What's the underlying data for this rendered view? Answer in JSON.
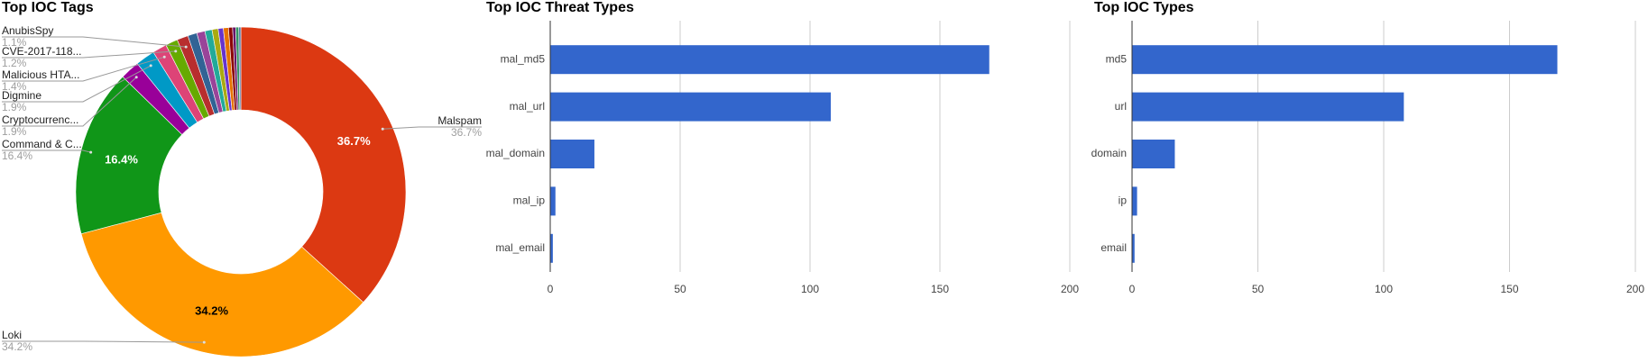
{
  "chart_data": [
    {
      "type": "pie",
      "title": "Top IOC Tags",
      "donut": true,
      "categories": [
        "Malspam",
        "Loki",
        "Command & C...",
        "Cryptocurrenc...",
        "Digmine",
        "Malicious HTA...",
        "CVE-2017-118...",
        "AnubisSpy",
        null,
        null,
        null,
        null,
        null,
        null,
        null,
        null,
        null,
        null
      ],
      "values": [
        36.7,
        34.2,
        16.4,
        1.9,
        1.9,
        1.4,
        1.2,
        1.1,
        0.9,
        0.8,
        0.7,
        0.6,
        0.5,
        0.5,
        0.4,
        0.3,
        0.3,
        0.2
      ],
      "value_labels": [
        "36.7%",
        "34.2%",
        "16.4%",
        "1.9%",
        "1.9%",
        "1.4%",
        "1.2%",
        "1.1%",
        null,
        null,
        null,
        null,
        null,
        null,
        null,
        null,
        null,
        null
      ],
      "colors": [
        "#dc3912",
        "#ff9900",
        "#109618",
        "#990099",
        "#0099c6",
        "#dd4477",
        "#66aa00",
        "#b82e2e",
        "#316395",
        "#994499",
        "#22aa99",
        "#aaaa11",
        "#6633cc",
        "#e67300",
        "#8b0707",
        "#651067",
        "#329262",
        "#5574a6"
      ]
    },
    {
      "type": "hbar",
      "title": "Top IOC Threat Types",
      "categories": [
        "mal_md5",
        "mal_url",
        "mal_domain",
        "mal_ip",
        "mal_email"
      ],
      "values": [
        169,
        108,
        17,
        2,
        1
      ],
      "color": "#3366cc",
      "xlim": [
        0,
        200
      ],
      "xticks": [
        0,
        50,
        100,
        150,
        200
      ],
      "grid": true
    },
    {
      "type": "hbar",
      "title": "Top IOC Types",
      "categories": [
        "md5",
        "url",
        "domain",
        "ip",
        "email"
      ],
      "values": [
        169,
        108,
        17,
        2,
        1
      ],
      "color": "#3366cc",
      "xlim": [
        0,
        200
      ],
      "xticks": [
        0,
        50,
        100,
        150,
        200
      ],
      "grid": true
    }
  ]
}
